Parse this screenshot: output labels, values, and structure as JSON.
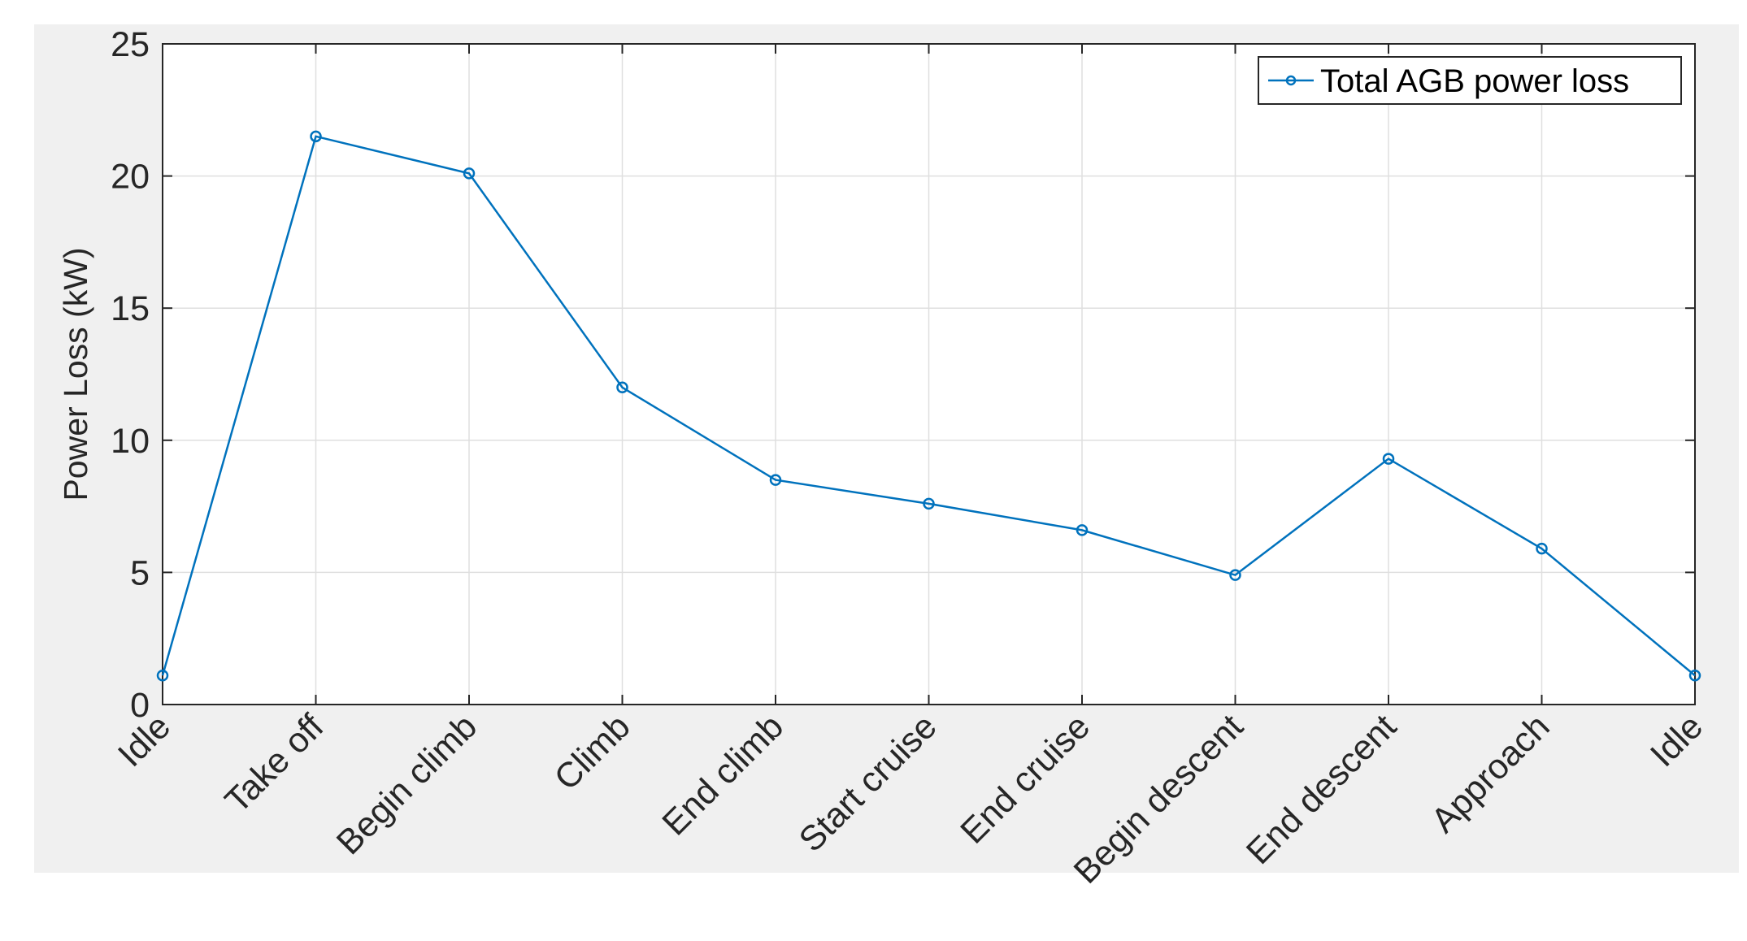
{
  "chart_data": {
    "type": "line",
    "title": "",
    "xlabel": "",
    "ylabel": "Power Loss (kW)",
    "categories": [
      "Idle",
      "Take off",
      "Begin climb",
      "Climb",
      "End climb",
      "Start cruise",
      "End cruise",
      "Begin descent",
      "End descent",
      "Approach",
      "Idle"
    ],
    "ylim": [
      0,
      25
    ],
    "yticks": [
      "0",
      "5",
      "10",
      "15",
      "20",
      "25"
    ],
    "grid": true,
    "legend_position": "top-right",
    "series": [
      {
        "name": "Total AGB power loss",
        "color": "#0072BD",
        "marker": "circle",
        "values": [
          1.1,
          21.5,
          20.1,
          12.0,
          8.5,
          7.6,
          6.6,
          4.9,
          9.3,
          5.9,
          1.1
        ]
      }
    ]
  }
}
